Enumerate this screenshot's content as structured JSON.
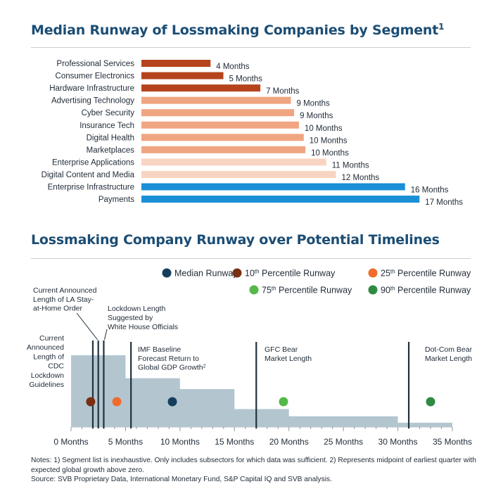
{
  "title1": {
    "text": "Median Runway of Lossmaking Companies by Segment",
    "sup": "1"
  },
  "title2": {
    "text": "Lossmaking Company Runway over Potential Timelines"
  },
  "chart_data": [
    {
      "type": "bar",
      "orientation": "horizontal",
      "title": "Median Runway of Lossmaking Companies by Segment1",
      "categories": [
        "Professional Services",
        "Consumer Electronics",
        "Hardware Infrastructure",
        "Advertising Technology",
        "Cyber Security",
        "Insurance Tech",
        "Digital Health",
        "Marketplaces",
        "Enterprise Applications",
        "Digital Content and Media",
        "Enterprise Infrastructure",
        "Payments"
      ],
      "values": [
        4.3,
        5.1,
        7.4,
        9.3,
        9.5,
        9.8,
        10.1,
        10.2,
        11.5,
        12.1,
        16.4,
        17.3
      ],
      "data_labels": [
        "4 Months",
        "5 Months",
        "7 Months",
        "9 Months",
        "9 Months",
        "10 Months",
        "10 Months",
        "10 Months",
        "11 Months",
        "12 Months",
        "16 Months",
        "17 Months"
      ],
      "bar_colors": [
        "#b5441d",
        "#b5441d",
        "#b5441d",
        "#f0a581",
        "#f0a581",
        "#f0a581",
        "#f0a581",
        "#f0a581",
        "#f9d4c2",
        "#f9d4c2",
        "#1a8fd6",
        "#1a8fd6"
      ],
      "xlim": [
        0,
        18
      ]
    },
    {
      "type": "step-area",
      "title": "Lossmaking Company Runway over Potential Timelines",
      "xlabel": "Months",
      "xlim": [
        0,
        35
      ],
      "xticks": [
        0,
        5,
        10,
        15,
        20,
        25,
        30,
        35
      ],
      "xtick_labels": [
        "0 Months",
        "5 Months",
        "10 Months",
        "15 Months",
        "20 Months",
        "25 Months",
        "30 Months",
        "35 Months"
      ],
      "steps": [
        {
          "x0": 0,
          "x1": 5,
          "share": 1.0
        },
        {
          "x0": 5,
          "x1": 10,
          "share": 0.68
        },
        {
          "x0": 10,
          "x1": 15,
          "share": 0.53
        },
        {
          "x0": 15,
          "x1": 20,
          "share": 0.25
        },
        {
          "x0": 20,
          "x1": 30,
          "share": 0.15
        },
        {
          "x0": 30,
          "x1": 35,
          "share": 0.06
        }
      ],
      "fill_color": "#b3c6d0",
      "points": [
        {
          "name": "10th Percentile Runway",
          "x": 1.8,
          "color": "#7a2f12"
        },
        {
          "name": "25th Percentile Runway",
          "x": 4.2,
          "color": "#ef6c2c"
        },
        {
          "name": "Median Runway",
          "x": 9.3,
          "color": "#163e5c"
        },
        {
          "name": "75th Percentile Runway",
          "x": 19.5,
          "color": "#55b849"
        },
        {
          "name": "90th Percentile Runway",
          "x": 33.0,
          "color": "#2e8b44"
        }
      ],
      "legend": [
        {
          "label": "Median Runway",
          "color": "#163e5c"
        },
        {
          "label": "10th Percentile Runway",
          "sup": "th",
          "num": "10",
          "rest": " Percentile Runway",
          "color": "#7a2f12"
        },
        {
          "label": "25th Percentile Runway",
          "sup": "th",
          "num": "25",
          "rest": " Percentile Runway",
          "color": "#ef6c2c"
        },
        {
          "label": "75th Percentile Runway",
          "sup": "th",
          "num": "75",
          "rest": " Percentile Runway",
          "color": "#55b849"
        },
        {
          "label": "90th Percentile Runway",
          "sup": "th",
          "num": "90",
          "rest": " Percentile Runway",
          "color": "#2e8b44"
        }
      ],
      "reference_lines": [
        {
          "x": 2.0,
          "lines": [
            "Current",
            "Announced",
            "Length of",
            "CDC",
            "Lockdown",
            "Guidelines"
          ]
        },
        {
          "x": 2.5,
          "lines": [
            "Current Announced",
            "Length of LA Stay-",
            "at-Home Order"
          ]
        },
        {
          "x": 3.0,
          "lines": [
            "Lockdown Length",
            "Suggested by",
            "White House Officials"
          ]
        },
        {
          "x": 5.5,
          "lines": [
            "IMF Baseline",
            "Forecast Return to",
            "Global GDP Growth2"
          ]
        },
        {
          "x": 17.0,
          "lines": [
            "GFC Bear",
            "Market Length"
          ]
        },
        {
          "x": 31.0,
          "lines": [
            "Dot-Com Bear",
            "Market Length"
          ]
        }
      ]
    }
  ],
  "notes": {
    "line1": "Notes: 1) Segment list is inexhaustive. Only includes subsectors for which data was sufficient. 2) Represents midpoint of earliest quarter with expected global growth above zero.",
    "line2": "Source: SVB Proprietary Data, International Monetary Fund, S&P Capital IQ and SVB analysis."
  }
}
